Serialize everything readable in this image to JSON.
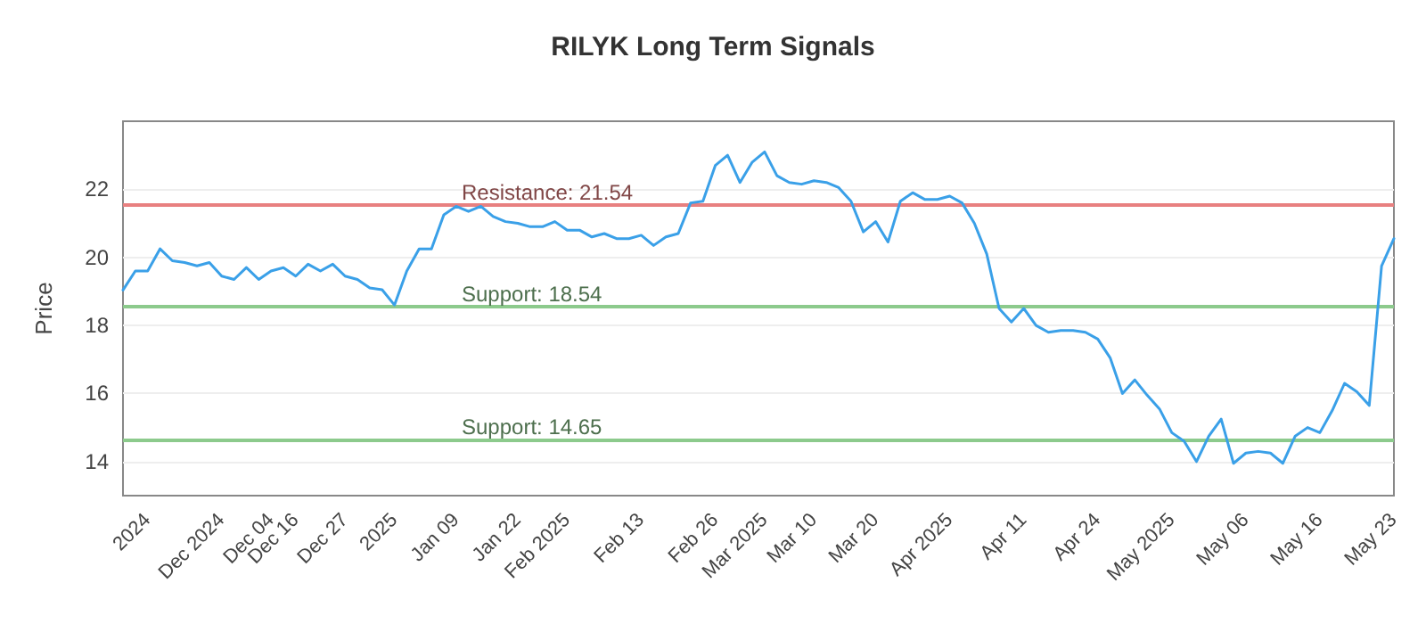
{
  "chart_data": {
    "type": "line",
    "title": "RILYK Long Term Signals",
    "ylabel": "Price",
    "categories": [
      null,
      null,
      "2024",
      null,
      null,
      null,
      null,
      null,
      "Dec 2024",
      null,
      null,
      null,
      "Dec 04",
      null,
      "Dec 16",
      null,
      null,
      null,
      "Dec 27",
      null,
      null,
      null,
      "2025",
      null,
      null,
      null,
      null,
      "Jan 09",
      null,
      null,
      null,
      null,
      "Jan 22",
      null,
      null,
      null,
      "Feb 2025",
      null,
      null,
      null,
      null,
      null,
      "Feb 13",
      null,
      null,
      null,
      null,
      null,
      "Feb 26",
      null,
      null,
      null,
      "Mar 2025",
      null,
      null,
      null,
      "Mar 10",
      null,
      null,
      null,
      null,
      "Mar 20",
      null,
      null,
      null,
      null,
      null,
      "Apr 2025",
      null,
      null,
      null,
      null,
      null,
      "Apr 11",
      null,
      null,
      null,
      null,
      null,
      "Apr 24",
      null,
      null,
      null,
      null,
      null,
      "May 2025",
      null,
      null,
      null,
      null,
      null,
      "May 06",
      null,
      null,
      null,
      null,
      null,
      "May 16",
      null,
      null,
      null,
      null,
      null,
      "May 23"
    ],
    "series": [
      {
        "color": "#3aa0e8",
        "values": [
          19.04,
          19.6,
          19.6,
          20.25,
          19.9,
          19.85,
          19.75,
          19.85,
          19.45,
          19.35,
          19.7,
          19.35,
          19.6,
          19.7,
          19.45,
          19.8,
          19.6,
          19.8,
          19.45,
          19.35,
          19.1,
          19.05,
          18.6,
          19.6,
          20.25,
          20.25,
          21.25,
          21.5,
          21.35,
          21.5,
          21.2,
          21.05,
          21.0,
          20.9,
          20.9,
          21.05,
          20.8,
          20.8,
          20.6,
          20.7,
          20.55,
          20.55,
          20.65,
          20.35,
          20.6,
          20.7,
          21.6,
          21.65,
          22.7,
          23.0,
          22.2,
          22.8,
          23.1,
          22.4,
          22.2,
          22.15,
          22.25,
          22.2,
          22.05,
          21.65,
          20.75,
          21.05,
          20.45,
          21.65,
          21.9,
          21.7,
          21.7,
          21.8,
          21.6,
          21.0,
          20.1,
          18.5,
          18.1,
          18.5,
          18.0,
          17.8,
          17.85,
          17.85,
          17.8,
          17.6,
          17.05,
          16.0,
          16.4,
          15.95,
          15.55,
          14.85,
          14.6,
          14.0,
          14.75,
          15.25,
          13.95,
          14.25,
          14.3,
          14.25,
          13.95,
          14.75,
          15.0,
          14.85,
          15.5,
          16.3,
          16.05,
          15.65,
          19.75,
          20.55
        ]
      }
    ],
    "ylim": [
      13,
      24
    ],
    "yticks": [
      14,
      16,
      18,
      20,
      22
    ],
    "grid": "y",
    "marker": "none",
    "line_style": "solid",
    "ref_lines": [
      {
        "axis": "y",
        "value": 21.54,
        "label": "Resistance: 21.54",
        "color": "#e88080"
      },
      {
        "axis": "y",
        "value": 18.54,
        "label": "Support: 18.54",
        "color": "#8cca8c"
      },
      {
        "axis": "y",
        "value": 14.65,
        "label": "Support: 14.65",
        "color": "#8cca8c"
      }
    ]
  }
}
